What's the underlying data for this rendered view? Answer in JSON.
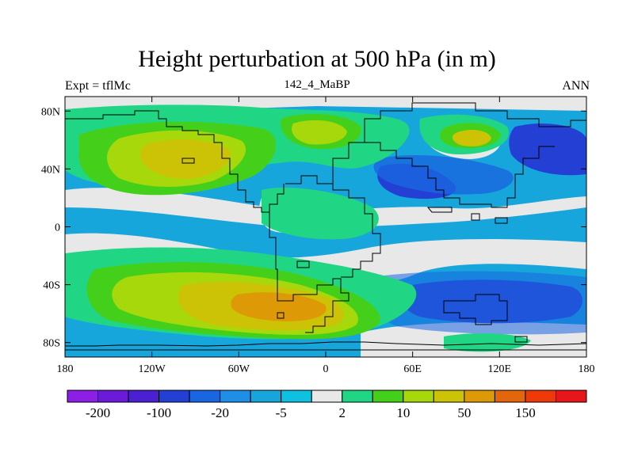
{
  "figure": {
    "title": "Height perturbation at 500 hPa (in m)",
    "left_label": "Expt = tflMc",
    "center_label": "142_4_MaBP",
    "right_label": "ANN"
  },
  "map": {
    "x_range": [
      -180,
      180
    ],
    "y_range": [
      -90,
      90
    ],
    "x_ticks": [
      {
        "value": -180,
        "label": "180"
      },
      {
        "value": -120,
        "label": "120W"
      },
      {
        "value": -60,
        "label": "60W"
      },
      {
        "value": 0,
        "label": "0"
      },
      {
        "value": 60,
        "label": "60E"
      },
      {
        "value": 120,
        "label": "120E"
      },
      {
        "value": 180,
        "label": "180"
      }
    ],
    "y_ticks": [
      {
        "value": 80,
        "label": "80N"
      },
      {
        "value": 40,
        "label": "40N"
      },
      {
        "value": 0,
        "label": "0"
      },
      {
        "value": -40,
        "label": "40S"
      },
      {
        "value": -80,
        "label": "80S"
      }
    ]
  },
  "colorbar": {
    "colors": [
      "#8c1ee6",
      "#6a1ad8",
      "#4a20d2",
      "#2440d4",
      "#1a66e0",
      "#1f8fe6",
      "#17a6dc",
      "#0fc1e0",
      "#e8e8e8",
      "#20d684",
      "#44d01a",
      "#a6d80c",
      "#ccc206",
      "#de9a06",
      "#e4660c",
      "#ee3a0a",
      "#e8161a"
    ],
    "labels": [
      {
        "boundary": 1,
        "text": "-200"
      },
      {
        "boundary": 3,
        "text": "-100"
      },
      {
        "boundary": 5,
        "text": "-20"
      },
      {
        "boundary": 7,
        "text": "-5"
      },
      {
        "boundary": 9,
        "text": "2"
      },
      {
        "boundary": 11,
        "text": "10"
      },
      {
        "boundary": 13,
        "text": "50"
      },
      {
        "boundary": 15,
        "text": "150"
      }
    ]
  }
}
